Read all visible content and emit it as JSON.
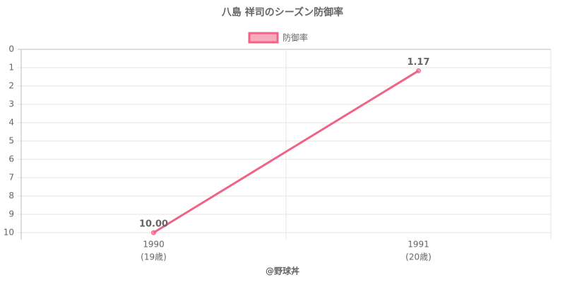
{
  "chart_data": {
    "type": "line",
    "title": "八島 祥司のシーズン防御率",
    "categories": [
      [
        "1990",
        "(19歳)"
      ],
      [
        "1991",
        "(20歳)"
      ]
    ],
    "series": [
      {
        "name": "防御率",
        "color": "#f06386",
        "values": [
          10,
          1.17
        ],
        "value_labels": [
          "10.00",
          "1.17"
        ]
      }
    ],
    "ylim": [
      0,
      10
    ],
    "yticks": [
      0,
      1,
      2,
      3,
      4,
      5,
      6,
      7,
      8,
      9,
      10
    ],
    "y_reversed": true,
    "grid": true,
    "legend": "top",
    "footer": "@野球丼"
  }
}
